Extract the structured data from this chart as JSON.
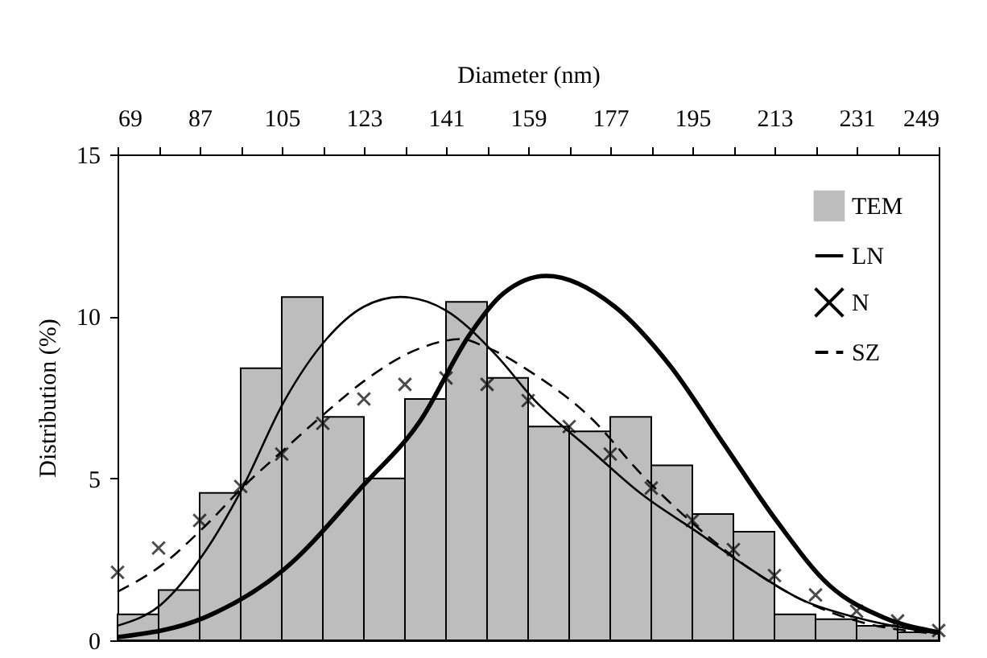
{
  "chart_data": {
    "type": "histogram",
    "xlabel": "Diameter (nm)",
    "ylabel": "Distribution (%)",
    "bins": [
      69,
      78,
      87,
      96,
      105,
      114,
      123,
      132,
      141,
      150,
      159,
      168,
      177,
      186,
      195,
      204,
      213,
      222,
      231,
      240,
      249
    ],
    "series": [
      {
        "name": "TEM",
        "color": "#bdbdbd",
        "values": [
          0.8,
          1.55,
          4.55,
          8.4,
          10.6,
          6.9,
          5.0,
          7.45,
          10.45,
          8.1,
          6.6,
          6.45,
          6.9,
          5.4,
          3.9,
          3.35,
          0.8,
          0.65,
          0.45,
          0.25
        ]
      },
      {
        "type": "line",
        "color": "#000000",
        "line_style": "solid",
        "x": [
          69,
          88,
          105.6,
          123,
          135,
          146.5,
          153.5,
          163,
          178,
          190,
          201.7,
          213.4,
          225,
          237,
          249
        ],
        "values": [
          0.1,
          0.7,
          2.2,
          4.8,
          6.7,
          9.5,
          10.7,
          11.25,
          10.3,
          8.5,
          6.1,
          3.7,
          1.7,
          0.7,
          0.25
        ]
      },
      {
        "name": "LN",
        "type": "line",
        "color": "#000000",
        "line_style": "solid",
        "x": [
          69,
          78.5,
          88,
          96,
          105.6,
          114.8,
          123,
          131,
          140.8,
          152,
          160.5,
          172.5,
          184,
          196,
          207.7,
          219,
          231,
          249
        ],
        "values": [
          0.45,
          1.1,
          2.7,
          4.6,
          7.4,
          9.3,
          10.3,
          10.6,
          10.2,
          8.8,
          7.4,
          5.9,
          4.5,
          3.35,
          2.2,
          1.25,
          0.7,
          0.2
        ]
      },
      {
        "name": "N",
        "type": "scatter",
        "color": "#000000",
        "marker": "cross",
        "x": [
          69,
          78,
          87,
          96,
          105,
          114,
          123,
          132,
          141,
          150,
          159,
          168,
          177,
          186,
          195,
          204,
          213,
          222,
          231,
          240,
          249
        ],
        "values": [
          2.1,
          2.85,
          3.7,
          4.75,
          5.75,
          6.7,
          7.45,
          7.9,
          8.1,
          7.9,
          7.4,
          6.6,
          5.75,
          4.7,
          3.7,
          2.8,
          2.0,
          1.4,
          0.9,
          0.6,
          0.3
        ]
      },
      {
        "name": "SZ",
        "type": "line",
        "color": "#000000",
        "line_style": "dashed",
        "x": [
          69,
          78.5,
          88,
          97,
          105.6,
          114.8,
          123,
          135,
          144.4,
          149,
          160.5,
          172.5,
          184,
          196,
          207.7,
          219,
          231,
          249
        ],
        "values": [
          1.5,
          2.3,
          3.5,
          4.8,
          5.9,
          7.05,
          8.0,
          9.0,
          9.3,
          9.1,
          8.2,
          6.9,
          5.1,
          3.5,
          2.2,
          1.25,
          0.6,
          0.2
        ]
      }
    ],
    "xlim": [
      69,
      249
    ],
    "xticks": [
      69,
      {
        "value": 78,
        "label": null
      },
      87,
      {
        "value": 96,
        "label": null
      },
      105,
      {
        "value": 114,
        "label": null
      },
      123,
      {
        "value": 132,
        "label": null
      },
      141,
      {
        "value": 150,
        "label": null
      },
      159,
      {
        "value": 168,
        "label": null
      },
      177,
      {
        "value": 186,
        "label": null
      },
      195,
      {
        "value": 204,
        "label": null
      },
      213,
      {
        "value": 222,
        "label": null
      },
      231,
      {
        "value": 240,
        "label": null
      },
      249
    ],
    "ylim": [
      0,
      15
    ],
    "yticks": [
      0,
      5,
      10,
      15
    ],
    "grid": false,
    "legend": "top right"
  }
}
